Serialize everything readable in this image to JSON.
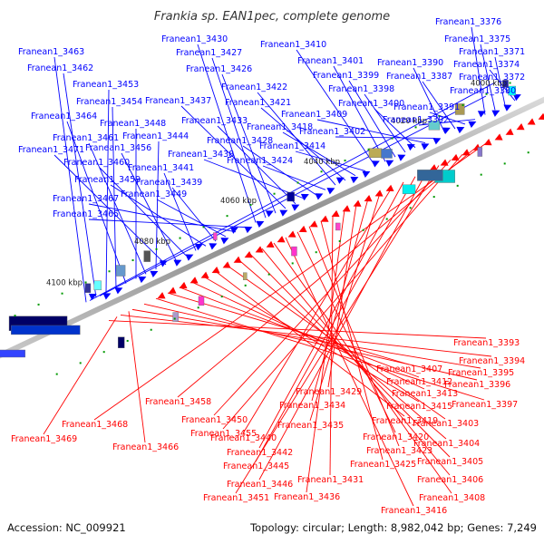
{
  "title": "Frankia sp. EAN1pec, complete genome",
  "accession": "Accession: NC_009921",
  "summary": "Topology: circular; Length: 8,982,042 bp; Genes: 7,249",
  "colors": {
    "forward": "#0000ff",
    "reverse": "#ff0000",
    "backbone": "#999999",
    "tick": "#009900"
  },
  "ticks": [
    "4000 kbp",
    "4020 kbp",
    "4040 kbp",
    "4060 kbp",
    "4080 kbp",
    "4100 kbp"
  ],
  "forward_genes": [
    "Franean1_3463",
    "Franean1_3462",
    "Franean1_3453",
    "Franean1_3454",
    "Franean1_3464",
    "Franean1_3448",
    "Franean1_3461",
    "Franean1_3444",
    "Franean1_3471",
    "Franean1_3456",
    "Franean1_3460",
    "Franean1_3441",
    "Franean1_3459",
    "Franean1_3439",
    "Franean1_3449",
    "Franean1_3467",
    "Franean1_3465",
    "Franean1_3430",
    "Franean1_3427",
    "Franean1_3426",
    "Franean1_3437",
    "Franean1_3433",
    "Franean1_3438",
    "Franean1_3428",
    "Franean1_3424",
    "Franean1_3422",
    "Franean1_3421",
    "Franean1_3418",
    "Franean1_3414",
    "Franean1_3410",
    "Franean1_3401",
    "Franean1_3399",
    "Franean1_3398",
    "Franean1_3400",
    "Franean1_3409",
    "Franean1_3402",
    "Franean1_3390",
    "Franean1_3387",
    "Franean1_3391",
    "Franean1_3392",
    "Franean1_3376",
    "Franean1_3375",
    "Franean1_3371",
    "Franean1_3374",
    "Franean1_3372",
    "Franean1_3380"
  ],
  "reverse_genes": [
    "Franean1_3393",
    "Franean1_3394",
    "Franean1_3395",
    "Franean1_3396",
    "Franean1_3397",
    "Franean1_3407",
    "Franean1_3412",
    "Franean1_3413",
    "Franean1_3415",
    "Franean1_3419",
    "Franean1_3403",
    "Franean1_3404",
    "Franean1_3405",
    "Franean1_3406",
    "Franean1_3408",
    "Franean1_3416",
    "Franean1_3420",
    "Franean1_3423",
    "Franean1_3425",
    "Franean1_3431",
    "Franean1_3436",
    "Franean1_3429",
    "Franean1_3434",
    "Franean1_3435",
    "Franean1_3440",
    "Franean1_3442",
    "Franean1_3445",
    "Franean1_3446",
    "Franean1_3451",
    "Franean1_3450",
    "Franean1_3455",
    "Franean1_3458",
    "Franean1_3468",
    "Franean1_3469",
    "Franean1_3466"
  ]
}
